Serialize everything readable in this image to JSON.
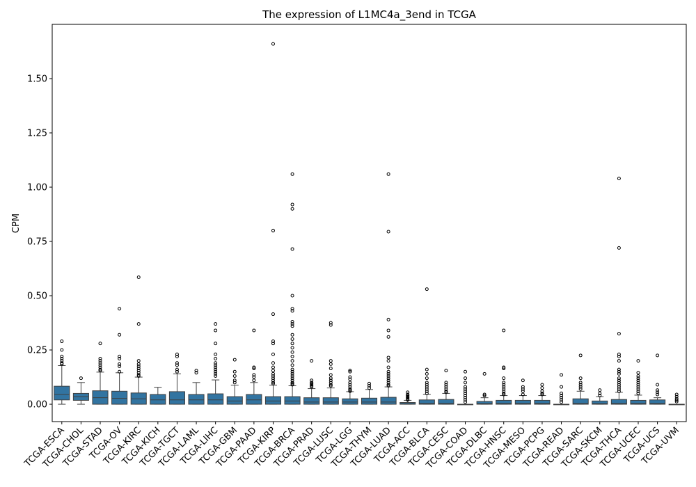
{
  "chart_data": {
    "type": "box",
    "title": "The expression of L1MC4a_3end in TCGA",
    "xlabel": "",
    "ylabel": "CPM",
    "ylim": [
      -0.08,
      1.75
    ],
    "yticks": [
      0.0,
      0.25,
      0.5,
      0.75,
      1.0,
      1.25,
      1.5
    ],
    "ytick_labels": [
      "0.00",
      "0.25",
      "0.50",
      "0.75",
      "1.00",
      "1.25",
      "1.50"
    ],
    "grid": false,
    "box_color": "#3274a1",
    "categories": [
      "TCGA-ESCA",
      "TCGA-CHOL",
      "TCGA-STAD",
      "TCGA-OV",
      "TCGA-KIRC",
      "TCGA-KICH",
      "TCGA-TGCT",
      "TCGA-LAML",
      "TCGA-LIHC",
      "TCGA-GBM",
      "TCGA-PAAD",
      "TCGA-KIRP",
      "TCGA-BRCA",
      "TCGA-PRAD",
      "TCGA-LUSC",
      "TCGA-LGG",
      "TCGA-THYM",
      "TCGA-LUAD",
      "TCGA-ACC",
      "TCGA-BLCA",
      "TCGA-CESC",
      "TCGA-COAD",
      "TCGA-DLBC",
      "TCGA-HNSC",
      "TCGA-MESO",
      "TCGA-PCPG",
      "TCGA-READ",
      "TCGA-SARC",
      "TCGA-SKCM",
      "TCGA-THCA",
      "TCGA-UCEC",
      "TCGA-UCS",
      "TCGA-UVM"
    ],
    "boxes": [
      {
        "whisker_low": 0.0,
        "q1": 0.02,
        "median": 0.045,
        "q3": 0.083,
        "whisker_high": 0.178,
        "outliers": [
          0.29,
          0.25,
          0.22,
          0.21,
          0.2,
          0.19,
          0.185
        ]
      },
      {
        "whisker_low": 0.0,
        "q1": 0.018,
        "median": 0.035,
        "q3": 0.05,
        "whisker_high": 0.1,
        "outliers": [
          0.12
        ]
      },
      {
        "whisker_low": 0.0,
        "q1": 0.0,
        "median": 0.03,
        "q3": 0.062,
        "whisker_high": 0.148,
        "outliers": [
          0.28,
          0.21,
          0.2,
          0.19,
          0.18,
          0.17,
          0.16,
          0.155
        ]
      },
      {
        "whisker_low": 0.0,
        "q1": 0.0,
        "median": 0.027,
        "q3": 0.06,
        "whisker_high": 0.145,
        "outliers": [
          0.44,
          0.32,
          0.22,
          0.21,
          0.185,
          0.175,
          0.15
        ]
      },
      {
        "whisker_low": 0.0,
        "q1": 0.0,
        "median": 0.025,
        "q3": 0.052,
        "whisker_high": 0.125,
        "outliers": [
          0.585,
          0.37,
          0.2,
          0.185,
          0.175,
          0.165,
          0.155,
          0.145,
          0.135,
          0.13
        ]
      },
      {
        "whisker_low": 0.0,
        "q1": 0.0,
        "median": 0.02,
        "q3": 0.045,
        "whisker_high": 0.078,
        "outliers": []
      },
      {
        "whisker_low": 0.0,
        "q1": 0.0,
        "median": 0.02,
        "q3": 0.058,
        "whisker_high": 0.14,
        "outliers": [
          0.23,
          0.22,
          0.19,
          0.18,
          0.16,
          0.15
        ]
      },
      {
        "whisker_low": 0.0,
        "q1": 0.0,
        "median": 0.02,
        "q3": 0.045,
        "whisker_high": 0.1,
        "outliers": [
          0.155,
          0.145
        ]
      },
      {
        "whisker_low": 0.0,
        "q1": 0.0,
        "median": 0.02,
        "q3": 0.048,
        "whisker_high": 0.112,
        "outliers": [
          0.37,
          0.34,
          0.28,
          0.23,
          0.21,
          0.19,
          0.18,
          0.17,
          0.16,
          0.15,
          0.14,
          0.13
        ]
      },
      {
        "whisker_low": 0.0,
        "q1": 0.0,
        "median": 0.015,
        "q3": 0.035,
        "whisker_high": 0.088,
        "outliers": [
          0.205,
          0.15,
          0.13,
          0.11,
          0.1
        ]
      },
      {
        "whisker_low": 0.0,
        "q1": 0.0,
        "median": 0.02,
        "q3": 0.045,
        "whisker_high": 0.1,
        "outliers": [
          0.34,
          0.17,
          0.165,
          0.135,
          0.125,
          0.11
        ]
      },
      {
        "whisker_low": 0.0,
        "q1": 0.0,
        "median": 0.015,
        "q3": 0.035,
        "whisker_high": 0.088,
        "outliers": [
          1.66,
          0.8,
          0.415,
          0.29,
          0.28,
          0.23,
          0.19,
          0.17,
          0.155,
          0.14,
          0.13,
          0.12,
          0.11,
          0.1,
          0.095
        ]
      },
      {
        "whisker_low": 0.0,
        "q1": 0.0,
        "median": 0.015,
        "q3": 0.035,
        "whisker_high": 0.085,
        "outliers": [
          1.06,
          0.92,
          0.9,
          0.715,
          0.5,
          0.44,
          0.43,
          0.38,
          0.37,
          0.36,
          0.32,
          0.3,
          0.28,
          0.26,
          0.24,
          0.22,
          0.2,
          0.18,
          0.16,
          0.15,
          0.14,
          0.13,
          0.12,
          0.11,
          0.1,
          0.095,
          0.09
        ]
      },
      {
        "whisker_low": 0.0,
        "q1": 0.0,
        "median": 0.01,
        "q3": 0.03,
        "whisker_high": 0.072,
        "outliers": [
          0.2,
          0.11,
          0.1,
          0.095,
          0.09,
          0.085,
          0.08
        ]
      },
      {
        "whisker_low": 0.0,
        "q1": 0.0,
        "median": 0.01,
        "q3": 0.03,
        "whisker_high": 0.075,
        "outliers": [
          0.375,
          0.365,
          0.2,
          0.185,
          0.165,
          0.135,
          0.12,
          0.11,
          0.1,
          0.09,
          0.085
        ]
      },
      {
        "whisker_low": 0.0,
        "q1": 0.0,
        "median": 0.01,
        "q3": 0.025,
        "whisker_high": 0.058,
        "outliers": [
          0.155,
          0.15,
          0.125,
          0.115,
          0.1,
          0.09,
          0.08,
          0.07,
          0.065,
          0.06
        ]
      },
      {
        "whisker_low": 0.0,
        "q1": 0.0,
        "median": 0.01,
        "q3": 0.028,
        "whisker_high": 0.068,
        "outliers": [
          0.095,
          0.085,
          0.075
        ]
      },
      {
        "whisker_low": 0.0,
        "q1": 0.0,
        "median": 0.01,
        "q3": 0.032,
        "whisker_high": 0.08,
        "outliers": [
          1.06,
          0.795,
          0.39,
          0.34,
          0.31,
          0.215,
          0.2,
          0.17,
          0.15,
          0.14,
          0.13,
          0.12,
          0.11,
          0.1,
          0.09,
          0.085
        ]
      },
      {
        "whisker_low": 0.0,
        "q1": 0.0,
        "median": 0.002,
        "q3": 0.008,
        "whisker_high": 0.018,
        "outliers": [
          0.055,
          0.045,
          0.04,
          0.035,
          0.03,
          0.025,
          0.02
        ]
      },
      {
        "whisker_low": 0.0,
        "q1": 0.0,
        "median": 0.005,
        "q3": 0.02,
        "whisker_high": 0.045,
        "outliers": [
          0.53,
          0.16,
          0.14,
          0.12,
          0.1,
          0.09,
          0.08,
          0.07,
          0.06,
          0.05
        ]
      },
      {
        "whisker_low": 0.0,
        "q1": 0.0,
        "median": 0.005,
        "q3": 0.022,
        "whisker_high": 0.05,
        "outliers": [
          0.155,
          0.1,
          0.09,
          0.08,
          0.07,
          0.06,
          0.055
        ]
      },
      {
        "whisker_low": 0.0,
        "q1": 0.0,
        "median": 0.0,
        "q3": 0.0,
        "whisker_high": 0.0,
        "outliers": [
          0.15,
          0.12,
          0.1,
          0.08,
          0.07,
          0.06,
          0.05,
          0.04,
          0.03,
          0.02,
          0.01
        ]
      },
      {
        "whisker_low": 0.0,
        "q1": 0.0,
        "median": 0.003,
        "q3": 0.013,
        "whisker_high": 0.03,
        "outliers": [
          0.14,
          0.045,
          0.04
        ]
      },
      {
        "whisker_low": 0.0,
        "q1": 0.0,
        "median": 0.005,
        "q3": 0.018,
        "whisker_high": 0.04,
        "outliers": [
          0.34,
          0.17,
          0.165,
          0.12,
          0.1,
          0.09,
          0.08,
          0.07,
          0.06,
          0.05,
          0.045
        ]
      },
      {
        "whisker_low": 0.0,
        "q1": 0.0,
        "median": 0.005,
        "q3": 0.018,
        "whisker_high": 0.04,
        "outliers": [
          0.11,
          0.08,
          0.07,
          0.06,
          0.045
        ]
      },
      {
        "whisker_low": 0.0,
        "q1": 0.0,
        "median": 0.004,
        "q3": 0.018,
        "whisker_high": 0.04,
        "outliers": [
          0.09,
          0.075,
          0.06,
          0.05,
          0.045
        ]
      },
      {
        "whisker_low": 0.0,
        "q1": 0.0,
        "median": 0.0,
        "q3": 0.0,
        "whisker_high": 0.0,
        "outliers": [
          0.135,
          0.08,
          0.05,
          0.04,
          0.03,
          0.02,
          0.01
        ]
      },
      {
        "whisker_low": 0.0,
        "q1": 0.0,
        "median": 0.005,
        "q3": 0.025,
        "whisker_high": 0.06,
        "outliers": [
          0.225,
          0.12,
          0.1,
          0.09,
          0.08,
          0.07
        ]
      },
      {
        "whisker_low": 0.0,
        "q1": 0.0,
        "median": 0.003,
        "q3": 0.015,
        "whisker_high": 0.035,
        "outliers": [
          0.065,
          0.05,
          0.04
        ]
      },
      {
        "whisker_low": 0.0,
        "q1": 0.0,
        "median": 0.005,
        "q3": 0.022,
        "whisker_high": 0.055,
        "outliers": [
          1.04,
          0.72,
          0.325,
          0.23,
          0.22,
          0.2,
          0.16,
          0.15,
          0.14,
          0.12,
          0.11,
          0.1,
          0.09,
          0.08,
          0.07,
          0.06
        ]
      },
      {
        "whisker_low": 0.0,
        "q1": 0.0,
        "median": 0.005,
        "q3": 0.018,
        "whisker_high": 0.042,
        "outliers": [
          0.2,
          0.145,
          0.13,
          0.12,
          0.11,
          0.1,
          0.09,
          0.08,
          0.07,
          0.06,
          0.05
        ]
      },
      {
        "whisker_low": 0.0,
        "q1": 0.0,
        "median": 0.005,
        "q3": 0.02,
        "whisker_high": 0.03,
        "outliers": [
          0.225,
          0.09,
          0.065,
          0.055,
          0.045
        ]
      },
      {
        "whisker_low": 0.0,
        "q1": 0.0,
        "median": 0.0,
        "q3": 0.0,
        "whisker_high": 0.0,
        "outliers": [
          0.045,
          0.035,
          0.025,
          0.018,
          0.012
        ]
      }
    ]
  }
}
